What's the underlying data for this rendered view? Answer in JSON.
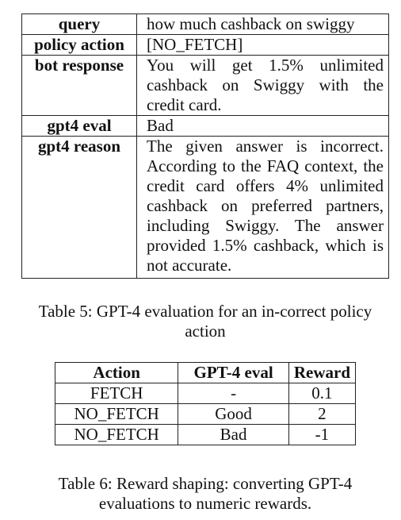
{
  "table5": {
    "rows": [
      {
        "key": "query",
        "value": "how much cashback on swiggy"
      },
      {
        "key": "policy action",
        "value": "[NO_FETCH]"
      },
      {
        "key": "bot response",
        "value": "You will get 1.5% unlimited cashback on Swiggy with the credit card."
      },
      {
        "key": "gpt4 eval",
        "value": "Bad"
      },
      {
        "key": "gpt4 reason",
        "value": "The given answer is incorrect. According to the FAQ context, the credit card offers 4% unlim­ited cashback on preferred part­ners, including Swiggy. The an­swer provided 1.5% cashback, which is not accurate."
      }
    ],
    "caption": "Table 5: GPT-4 evaluation for an in-correct policy action"
  },
  "table6": {
    "headers": [
      "Action",
      "GPT-4 eval",
      "Reward"
    ],
    "rows": [
      [
        "FETCH",
        "-",
        "0.1"
      ],
      [
        "NO_FETCH",
        "Good",
        "2"
      ],
      [
        "NO_FETCH",
        "Bad",
        "-1"
      ]
    ],
    "caption": "Table 6: Reward shaping: converting GPT-4 evaluations to numeric rewards."
  }
}
